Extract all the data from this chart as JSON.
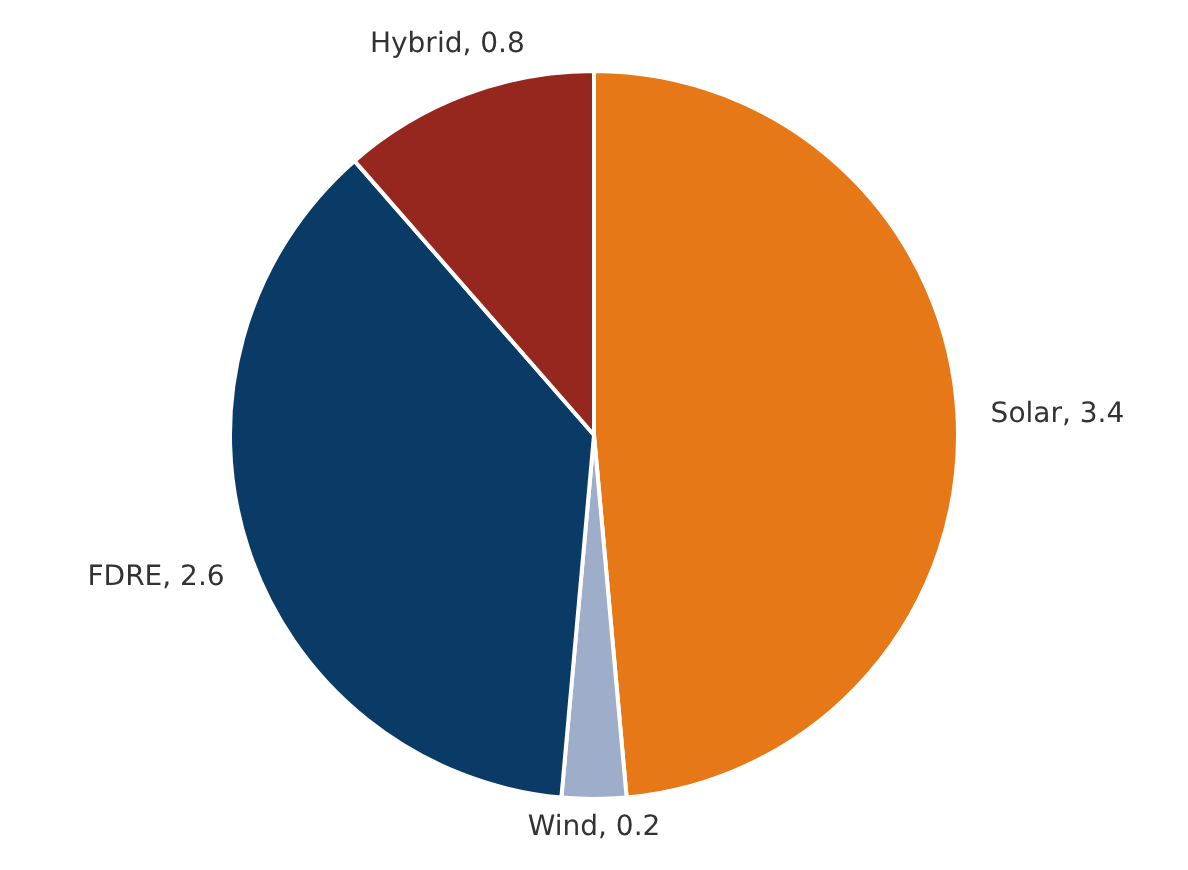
{
  "chart_data": {
    "type": "pie",
    "categories": [
      null,
      null,
      null,
      null
    ],
    "values": [
      3.4,
      0.2,
      2.6,
      0.8
    ],
    "value_labels": [
      "Solar, 3.4",
      "Wind, 0.2",
      "FDRE, 2.6",
      "Hybrid, 0.8"
    ],
    "colors": [
      "#e67817",
      "#9eadca",
      "#0a3a66",
      "#96271e"
    ]
  }
}
